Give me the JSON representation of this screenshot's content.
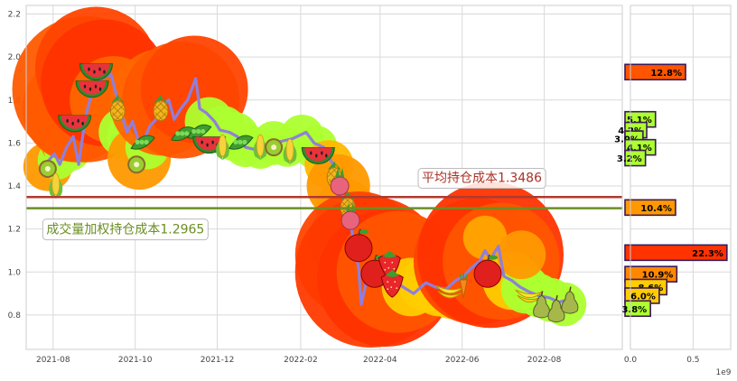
{
  "chart_data": {
    "type": "line",
    "main": {
      "x_ticks": [
        "2021-08",
        "2021-10",
        "2021-12",
        "2022-02",
        "2022-04",
        "2022-06",
        "2022-08"
      ],
      "y_ticks": [
        "0.8",
        "1.0",
        "1.2",
        "1.4",
        "1.6",
        "1.8",
        "2.0",
        "2.2"
      ],
      "ylim": [
        0.64,
        2.24
      ],
      "xlim": [
        "2021-07-12",
        "2022-09-28"
      ],
      "grid": true,
      "price_series": {
        "color": "#8f7fdc",
        "points": [
          [
            "2021-07-26",
            1.5
          ],
          [
            "2021-08-02",
            1.55
          ],
          [
            "2021-08-06",
            1.5
          ],
          [
            "2021-08-11",
            1.58
          ],
          [
            "2021-08-16",
            1.63
          ],
          [
            "2021-08-20",
            1.5
          ],
          [
            "2021-08-25",
            1.72
          ],
          [
            "2021-08-30",
            1.84
          ],
          [
            "2021-09-06",
            1.9
          ],
          [
            "2021-09-13",
            1.92
          ],
          [
            "2021-09-20",
            1.75
          ],
          [
            "2021-09-25",
            1.65
          ],
          [
            "2021-09-29",
            1.7
          ],
          [
            "2021-10-04",
            1.6
          ],
          [
            "2021-10-08",
            1.62
          ],
          [
            "2021-10-12",
            1.68
          ],
          [
            "2021-10-18",
            1.72
          ],
          [
            "2021-10-22",
            1.78
          ],
          [
            "2021-10-26",
            1.8
          ],
          [
            "2021-10-30",
            1.71
          ],
          [
            "2021-11-04",
            1.76
          ],
          [
            "2021-11-09",
            1.8
          ],
          [
            "2021-11-15",
            1.9
          ],
          [
            "2021-11-18",
            1.76
          ],
          [
            "2021-11-23",
            1.74
          ],
          [
            "2021-11-29",
            1.7
          ],
          [
            "2021-12-03",
            1.66
          ],
          [
            "2021-12-10",
            1.65
          ],
          [
            "2021-12-16",
            1.63
          ],
          [
            "2021-12-22",
            1.58
          ],
          [
            "2021-12-29",
            1.57
          ],
          [
            "2022-01-05",
            1.55
          ],
          [
            "2022-01-12",
            1.6
          ],
          [
            "2022-01-19",
            1.61
          ],
          [
            "2022-01-26",
            1.62
          ],
          [
            "2022-02-05",
            1.65
          ],
          [
            "2022-02-11",
            1.6
          ],
          [
            "2022-02-18",
            1.58
          ],
          [
            "2022-02-25",
            1.5
          ],
          [
            "2022-03-02",
            1.4
          ],
          [
            "2022-03-08",
            1.28
          ],
          [
            "2022-03-12",
            1.16
          ],
          [
            "2022-03-16",
            1.02
          ],
          [
            "2022-03-18",
            0.85
          ],
          [
            "2022-03-22",
            0.96
          ],
          [
            "2022-03-28",
            1.0
          ],
          [
            "2022-04-02",
            0.94
          ],
          [
            "2022-04-10",
            0.97
          ],
          [
            "2022-04-18",
            0.93
          ],
          [
            "2022-04-26",
            0.9
          ],
          [
            "2022-05-05",
            0.95
          ],
          [
            "2022-05-12",
            0.93
          ],
          [
            "2022-05-20",
            0.92
          ],
          [
            "2022-05-27",
            0.96
          ],
          [
            "2022-06-02",
            0.98
          ],
          [
            "2022-06-08",
            1.02
          ],
          [
            "2022-06-14",
            1.05
          ],
          [
            "2022-06-18",
            1.1
          ],
          [
            "2022-06-22",
            1.06
          ],
          [
            "2022-06-28",
            1.12
          ],
          [
            "2022-07-02",
            0.98
          ],
          [
            "2022-07-08",
            0.96
          ],
          [
            "2022-07-14",
            0.93
          ],
          [
            "2022-07-20",
            0.91
          ],
          [
            "2022-07-28",
            0.89
          ],
          [
            "2022-08-05",
            0.88
          ],
          [
            "2022-08-12",
            0.86
          ],
          [
            "2022-08-18",
            0.87
          ],
          [
            "2022-08-22",
            0.84
          ]
        ]
      },
      "lines": [
        {
          "label": "平均持仓成本1.3486",
          "value": 1.3486,
          "color": "#b03a2e",
          "text_color": "#a93226",
          "anchor_x": "2022-05-02",
          "label_y": 1.44
        },
        {
          "label": "成交量加权持仓成本1.2965",
          "value": 1.2965,
          "color": "#6b8e23",
          "text_color": "#6b8e23",
          "anchor_x": "2021-07-27",
          "label_y": 1.2
        }
      ],
      "bubbles": [
        [
          "2021-07-28",
          1.49,
          1.0,
          "#ff9900"
        ],
        [
          "2021-08-04",
          1.52,
          0.8,
          "#adff2f"
        ],
        [
          "2021-08-08",
          1.6,
          0.9,
          "#ff8800"
        ],
        [
          "2021-08-12",
          1.58,
          1.0,
          "#adff2f"
        ],
        [
          "2021-08-18",
          1.76,
          2.2,
          "#ff5500"
        ],
        [
          "2021-08-25",
          1.85,
          3.0,
          "#ff5a00"
        ],
        [
          "2021-09-02",
          1.95,
          2.5,
          "#ff4400"
        ],
        [
          "2021-09-08",
          1.88,
          2.6,
          "#ff3300"
        ],
        [
          "2021-09-15",
          1.8,
          1.8,
          "#ff6600"
        ],
        [
          "2021-09-22",
          1.65,
          1.0,
          "#adff2f"
        ],
        [
          "2021-09-30",
          1.63,
          1.1,
          "#adff2f"
        ],
        [
          "2021-10-04",
          1.53,
          1.3,
          "#ff9900"
        ],
        [
          "2021-10-10",
          1.58,
          0.9,
          "#adff2f"
        ],
        [
          "2021-10-15",
          1.66,
          1.0,
          "#adff2f"
        ],
        [
          "2021-10-22",
          1.79,
          2.2,
          "#ff6600"
        ],
        [
          "2021-11-04",
          1.8,
          2.4,
          "#ff5500"
        ],
        [
          "2021-11-14",
          1.85,
          2.2,
          "#ff4400"
        ],
        [
          "2021-11-25",
          1.7,
          1.0,
          "#adff2f"
        ],
        [
          "2021-12-05",
          1.66,
          1.0,
          "#adff2f"
        ],
        [
          "2021-12-14",
          1.63,
          1.0,
          "#adff2f"
        ],
        [
          "2021-12-22",
          1.59,
          0.9,
          "#adff2f"
        ],
        [
          "2022-01-02",
          1.57,
          0.8,
          "#adff2f"
        ],
        [
          "2022-01-12",
          1.6,
          0.9,
          "#adff2f"
        ],
        [
          "2022-01-22",
          1.58,
          0.8,
          "#adff2f"
        ],
        [
          "2022-02-02",
          1.63,
          0.9,
          "#adff2f"
        ],
        [
          "2022-02-12",
          1.58,
          0.9,
          "#adff2f"
        ],
        [
          "2022-02-22",
          1.5,
          1.0,
          "#ffb800"
        ],
        [
          "2022-03-01",
          1.4,
          1.3,
          "#ff9900"
        ],
        [
          "2022-03-06",
          1.3,
          1.2,
          "#ff9900"
        ],
        [
          "2022-03-10",
          1.15,
          1.7,
          "#ff8800"
        ],
        [
          "2022-03-16",
          1.08,
          2.6,
          "#ff4400"
        ],
        [
          "2022-03-25",
          1.0,
          3.1,
          "#ff3a00"
        ],
        [
          "2022-04-05",
          0.97,
          2.8,
          "#ff3300"
        ],
        [
          "2022-04-14",
          1.0,
          2.5,
          "#ff5500"
        ],
        [
          "2022-04-24",
          0.93,
          1.2,
          "#ffcc00"
        ],
        [
          "2022-05-05",
          0.94,
          1.1,
          "#ffcc00"
        ],
        [
          "2022-05-15",
          0.93,
          1.2,
          "#ffcc00"
        ],
        [
          "2022-05-25",
          0.94,
          1.4,
          "#ffcc00"
        ],
        [
          "2022-06-04",
          0.98,
          1.6,
          "#ff9900"
        ],
        [
          "2022-06-12",
          1.05,
          2.6,
          "#ff4400"
        ],
        [
          "2022-06-22",
          1.08,
          3.0,
          "#ff3300"
        ],
        [
          "2022-06-30",
          1.05,
          2.4,
          "#ff5500"
        ],
        [
          "2022-07-08",
          0.96,
          1.2,
          "#ffcc00"
        ],
        [
          "2022-07-18",
          0.92,
          1.0,
          "#adff2f"
        ],
        [
          "2022-07-28",
          0.89,
          0.9,
          "#adff2f"
        ],
        [
          "2022-08-06",
          0.87,
          0.9,
          "#adff2f"
        ],
        [
          "2022-08-16",
          0.85,
          0.9,
          "#adff2f"
        ],
        [
          "2022-06-18",
          1.16,
          0.9,
          "#ffa500"
        ],
        [
          "2022-07-15",
          1.08,
          1.0,
          "#ff9900"
        ]
      ],
      "fruits": [
        [
          "2021-07-28",
          1.48,
          "kiwi"
        ],
        [
          "2021-08-03",
          1.4,
          "corn"
        ],
        [
          "2021-08-17",
          1.72,
          "watermelon"
        ],
        [
          "2021-08-30",
          1.88,
          "watermelon"
        ],
        [
          "2021-09-02",
          1.96,
          "watermelon"
        ],
        [
          "2021-09-18",
          1.75,
          "pineapple"
        ],
        [
          "2021-10-02",
          1.5,
          "kiwi"
        ],
        [
          "2021-10-06",
          1.6,
          "pea"
        ],
        [
          "2021-10-20",
          1.75,
          "pineapple"
        ],
        [
          "2021-11-05",
          1.64,
          "pea"
        ],
        [
          "2021-11-17",
          1.65,
          "pea"
        ],
        [
          "2021-11-25",
          1.62,
          "watermelon"
        ],
        [
          "2021-12-05",
          1.58,
          "corn"
        ],
        [
          "2021-12-18",
          1.6,
          "pea"
        ],
        [
          "2022-01-02",
          1.58,
          "corn"
        ],
        [
          "2022-01-12",
          1.58,
          "kiwi"
        ],
        [
          "2022-01-24",
          1.56,
          "corn"
        ],
        [
          "2022-02-14",
          1.57,
          "watermelon"
        ],
        [
          "2022-02-26",
          1.44,
          "pineapple"
        ],
        [
          "2022-03-02",
          1.4,
          "radish"
        ],
        [
          "2022-03-08",
          1.3,
          "pineapple"
        ],
        [
          "2022-03-10",
          1.24,
          "radish"
        ],
        [
          "2022-03-16",
          1.12,
          "apple"
        ],
        [
          "2022-03-28",
          1.0,
          "apple"
        ],
        [
          "2022-04-08",
          1.04,
          "strawberry"
        ],
        [
          "2022-04-10",
          0.95,
          "strawberry"
        ],
        [
          "2022-05-22",
          0.92,
          "banana"
        ],
        [
          "2022-06-02",
          0.93,
          "carrot"
        ],
        [
          "2022-06-20",
          1.0,
          "apple"
        ],
        [
          "2022-07-20",
          0.9,
          "banana"
        ],
        [
          "2022-07-30",
          0.84,
          "pear"
        ],
        [
          "2022-08-10",
          0.82,
          "pear"
        ],
        [
          "2022-08-20",
          0.86,
          "pear"
        ]
      ]
    },
    "side": {
      "x_ticks": [
        "0.0",
        "0.5"
      ],
      "xlim": [
        0,
        0.8
      ],
      "exponent_label": "1e9",
      "bars": [
        {
          "y": 1.93,
          "value": 0.44,
          "label": "12.8%",
          "color": "#ff5500"
        },
        {
          "y": 1.71,
          "value": 0.2,
          "label": "5.1%",
          "color": "#adff2f"
        },
        {
          "y": 1.66,
          "value": 0.13,
          "label": "4.2%",
          "color": "#adff2f"
        },
        {
          "y": 1.62,
          "value": 0.1,
          "label": "3.0%",
          "color": "#adff2f"
        },
        {
          "y": 1.58,
          "value": 0.2,
          "label": "4.1%",
          "color": "#adff2f"
        },
        {
          "y": 1.53,
          "value": 0.12,
          "label": "3.2%",
          "color": "#adff2f"
        },
        {
          "y": 1.3,
          "value": 0.36,
          "label": "10.4%",
          "color": "#ff9900"
        },
        {
          "y": 1.09,
          "value": 0.77,
          "label": "22.3%",
          "color": "#ff3300"
        },
        {
          "y": 0.99,
          "value": 0.37,
          "label": "10.9%",
          "color": "#ff8800"
        },
        {
          "y": 0.93,
          "value": 0.29,
          "label": "8.6%",
          "color": "#ffcc00"
        },
        {
          "y": 0.89,
          "value": 0.23,
          "label": "6.0%",
          "color": "#ffcc00"
        },
        {
          "y": 0.83,
          "value": 0.16,
          "label": "3.8%",
          "color": "#adff2f"
        }
      ]
    }
  }
}
